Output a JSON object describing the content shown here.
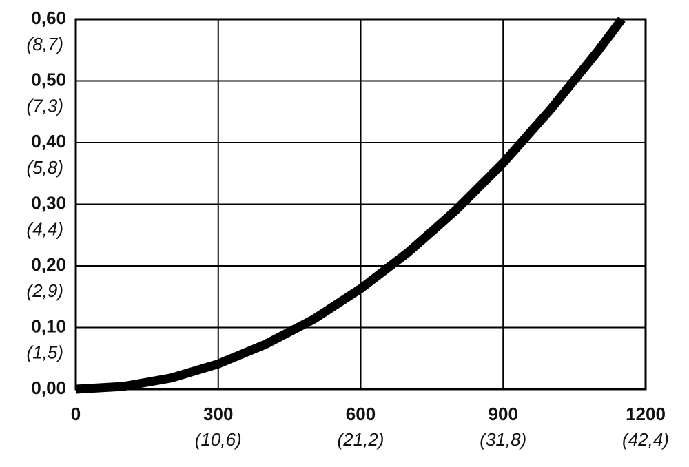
{
  "chart_data": {
    "type": "line",
    "x": [
      0,
      100,
      200,
      300,
      400,
      500,
      600,
      700,
      800,
      900,
      1000,
      1100,
      1150
    ],
    "values": [
      0,
      0.0045,
      0.018,
      0.041,
      0.073,
      0.113,
      0.163,
      0.222,
      0.29,
      0.367,
      0.454,
      0.549,
      0.6
    ],
    "color": "#000000",
    "xlim": [
      0,
      1200
    ],
    "xticks": [
      0,
      300,
      600,
      900,
      1200
    ],
    "xticks2": [
      {
        "value": 300,
        "label": "(10,6)"
      },
      {
        "value": 600,
        "label": "(21,2)"
      },
      {
        "value": 900,
        "label": "(31,8)"
      },
      {
        "value": 1200,
        "label": "(42,4)"
      }
    ],
    "ylim": [
      0,
      0.6
    ],
    "yticks": [
      {
        "value": 0,
        "label": "0,00"
      },
      {
        "value": 0.1,
        "label": "0,10"
      },
      {
        "value": 0.2,
        "label": "0,20"
      },
      {
        "value": 0.3,
        "label": "0,30"
      },
      {
        "value": 0.4,
        "label": "0,40"
      },
      {
        "value": 0.5,
        "label": "0,50"
      },
      {
        "value": 0.6,
        "label": "0,60"
      }
    ],
    "yticks2": [
      {
        "value": 0.1,
        "label": "(1,5)"
      },
      {
        "value": 0.2,
        "label": "(2,9)"
      },
      {
        "value": 0.3,
        "label": "(4,4)"
      },
      {
        "value": 0.4,
        "label": "(5,8)"
      },
      {
        "value": 0.5,
        "label": "(7,3)"
      },
      {
        "value": 0.6,
        "label": "(8,7)"
      }
    ],
    "grid": true
  }
}
